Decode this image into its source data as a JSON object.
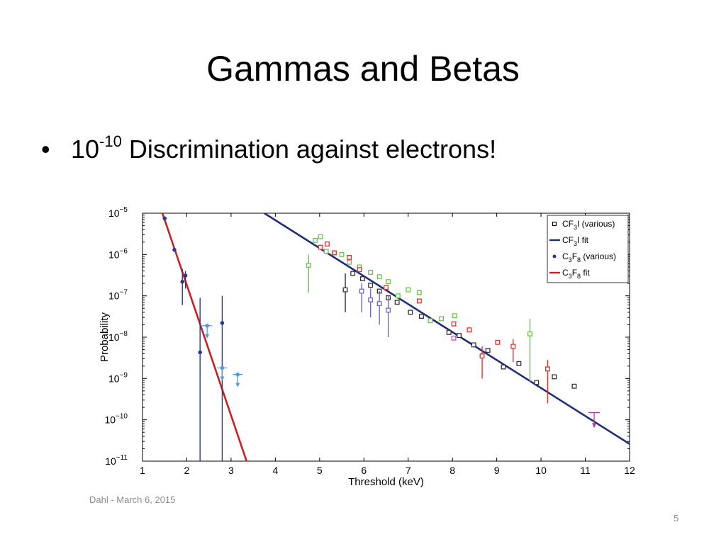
{
  "slide": {
    "title": "Gammas and Betas",
    "bullet_base": "10",
    "bullet_exponent": "-10",
    "bullet_text": " Discrimination against electrons!",
    "footer": "Dahl - March 6, 2015",
    "page_number": "5"
  },
  "chart_data": {
    "type": "scatter",
    "xlabel": "Threshold (keV)",
    "ylabel": "Probability",
    "xlim": [
      1,
      12
    ],
    "ylim": [
      1e-11,
      1e-05
    ],
    "yscale": "log",
    "xticks": [
      "1",
      "2",
      "3",
      "4",
      "5",
      "6",
      "7",
      "8",
      "9",
      "10",
      "11",
      "12"
    ],
    "yticks": [
      {
        "base": "10",
        "exp": "−5",
        "value": 1e-05
      },
      {
        "base": "10",
        "exp": "−6",
        "value": 1e-06
      },
      {
        "base": "10",
        "exp": "−7",
        "value": 1e-07
      },
      {
        "base": "10",
        "exp": "−8",
        "value": 1e-08
      },
      {
        "base": "10",
        "exp": "−9",
        "value": 1e-09
      },
      {
        "base": "10",
        "exp": "−10",
        "value": 1e-10
      },
      {
        "base": "10",
        "exp": "−11",
        "value": 1e-11
      }
    ],
    "legend_position": "top-right",
    "legend": [
      {
        "key": "cf3i",
        "parts": [
          {
            "t": "CF"
          },
          {
            "t": "3",
            "sub": true
          },
          {
            "t": "I (various)"
          }
        ],
        "marker": "square",
        "color": "#000000"
      },
      {
        "key": "cf3i_fit",
        "parts": [
          {
            "t": "CF"
          },
          {
            "t": "3",
            "sub": true
          },
          {
            "t": "I fit"
          }
        ],
        "marker": "line",
        "color": "#1f2d7a"
      },
      {
        "key": "c3f8",
        "parts": [
          {
            "t": "C"
          },
          {
            "t": "3",
            "sub": true
          },
          {
            "t": "F"
          },
          {
            "t": "8",
            "sub": true
          },
          {
            "t": " (various)"
          }
        ],
        "marker": "dot",
        "color": "#2a3a8a"
      },
      {
        "key": "c3f8_fit",
        "parts": [
          {
            "t": "C"
          },
          {
            "t": "3",
            "sub": true
          },
          {
            "t": "F"
          },
          {
            "t": "8",
            "sub": true
          },
          {
            "t": " fit"
          }
        ],
        "marker": "line",
        "color": "#cc1f1f"
      }
    ],
    "fits": [
      {
        "name": "CF3I fit",
        "color": "#1f2d7a",
        "points": [
          [
            3.75,
            1e-05
          ],
          [
            12,
            2.6e-11
          ]
        ]
      },
      {
        "name": "C3F8 fit",
        "color": "#cc1f1f",
        "points": [
          [
            1.45,
            1e-05
          ],
          [
            3.35,
            1e-11
          ]
        ]
      }
    ],
    "series": [
      {
        "name": "C3F8 (various)",
        "marker": "dot",
        "color": "#2a3a8a",
        "points": [
          [
            1.5,
            7.5e-06,
            null,
            null
          ],
          [
            1.72,
            1.3e-06,
            null,
            null
          ],
          [
            1.9,
            2.2e-07,
            6e-08,
            4.5e-07
          ],
          [
            1.97,
            3.1e-07,
            1.5e-07,
            4e-07
          ],
          [
            2.3,
            4.3e-09,
            1e-11,
            9e-08
          ],
          [
            2.8,
            2.2e-08,
            1e-11,
            1e-07
          ]
        ]
      },
      {
        "name": "C3F8 (various)",
        "marker": "dot",
        "color": "#4aa0d8",
        "arrow": true,
        "points": [
          [
            2.46,
            1.9e-08,
            null,
            null
          ],
          [
            2.8,
            1.8e-09,
            null,
            null
          ],
          [
            3.15,
            1.25e-09,
            null,
            null
          ]
        ]
      },
      {
        "name": "CF3I (various)",
        "marker": "square",
        "color": "#6cc24a",
        "points": [
          [
            4.75,
            5.5e-07,
            1.2e-07,
            1e-06
          ],
          [
            4.9,
            2.2e-06,
            null,
            null
          ],
          [
            5.02,
            2.7e-06,
            null,
            null
          ],
          [
            5.15,
            1.2e-06,
            null,
            null
          ],
          [
            5.33,
            1.1e-06,
            null,
            null
          ],
          [
            5.5,
            1e-06,
            null,
            null
          ],
          [
            5.67,
            6.5e-07,
            null,
            null
          ],
          [
            5.9,
            5e-07,
            null,
            null
          ],
          [
            6.15,
            3.7e-07,
            null,
            null
          ],
          [
            6.35,
            2.9e-07,
            null,
            null
          ],
          [
            6.55,
            2.2e-07,
            null,
            null
          ],
          [
            6.77,
            1e-07,
            null,
            null
          ],
          [
            7,
            1.4e-07,
            null,
            null
          ],
          [
            7.25,
            1.2e-07,
            null,
            null
          ],
          [
            7.5,
            2.5e-08,
            null,
            null
          ],
          [
            7.75,
            2.8e-08,
            null,
            null
          ],
          [
            8.05,
            3.3e-08,
            null,
            null
          ],
          [
            9.75,
            1.2e-08,
            8e-10,
            2.8e-08
          ]
        ]
      },
      {
        "name": "CF3I (various)",
        "marker": "square",
        "color": "#e0302a",
        "points": [
          [
            5.02,
            1.5e-06,
            null,
            null
          ],
          [
            5.17,
            1.8e-06,
            null,
            null
          ],
          [
            5.33,
            1.1e-06,
            null,
            null
          ],
          [
            5.67,
            8.5e-07,
            null,
            null
          ],
          [
            5.9,
            4.3e-07,
            null,
            null
          ],
          [
            6.5,
            1.6e-07,
            null,
            null
          ],
          [
            7.25,
            7.5e-08,
            null,
            null
          ],
          [
            8.03,
            2.1e-08,
            null,
            null
          ],
          [
            8.38,
            1.5e-08,
            null,
            null
          ],
          [
            8.67,
            3.5e-09,
            1e-09,
            6e-09
          ],
          [
            9.02,
            7.5e-09,
            null,
            null
          ],
          [
            9.37,
            6e-09,
            2.5e-09,
            9e-09
          ],
          [
            10.15,
            1.7e-09,
            2.5e-10,
            2.8e-09
          ]
        ]
      },
      {
        "name": "CF3I (various)",
        "marker": "square",
        "color": "#333333",
        "points": [
          [
            5.58,
            1.4e-07,
            4e-08,
            3.5e-07
          ],
          [
            5.75,
            3.5e-07,
            null,
            null
          ],
          [
            5.97,
            2.6e-07,
            null,
            null
          ],
          [
            6.15,
            1.8e-07,
            null,
            null
          ],
          [
            6.35,
            1.3e-07,
            null,
            null
          ],
          [
            6.55,
            9e-08,
            null,
            null
          ],
          [
            6.75,
            7e-08,
            null,
            null
          ],
          [
            7.05,
            4e-08,
            null,
            null
          ],
          [
            7.3,
            3.2e-08,
            null,
            null
          ],
          [
            7.92,
            1.3e-08,
            null,
            null
          ],
          [
            8.15,
            1.1e-08,
            null,
            null
          ],
          [
            8.48,
            6.5e-09,
            null,
            null
          ],
          [
            8.8,
            4.8e-09,
            null,
            null
          ],
          [
            9.15,
            1.9e-09,
            null,
            null
          ],
          [
            9.5,
            2.3e-09,
            null,
            null
          ],
          [
            9.9,
            8e-10,
            null,
            null
          ],
          [
            10.3,
            1.1e-09,
            null,
            null
          ],
          [
            10.75,
            6.5e-10,
            null,
            null
          ]
        ]
      },
      {
        "name": "CF3I (various)",
        "marker": "square",
        "color": "#6a6ac8",
        "points": [
          [
            5.95,
            1.3e-07,
            4e-08,
            2e-07
          ],
          [
            6.15,
            8e-08,
            3e-08,
            1.5e-07
          ],
          [
            6.35,
            6.5e-08,
            2e-08,
            1.3e-07
          ],
          [
            6.55,
            4.5e-08,
            1e-08,
            1e-07
          ]
        ]
      },
      {
        "name": "CF3I (various)",
        "marker": "square",
        "color": "#c050c0",
        "points": [
          [
            8.03,
            9.5e-09,
            null,
            null
          ]
        ]
      },
      {
        "name": "CF3I (various)",
        "marker": "triangle",
        "color": "#b03aa0",
        "arrow": true,
        "points": [
          [
            11.2,
            1.5e-10,
            null,
            null
          ]
        ]
      }
    ]
  }
}
